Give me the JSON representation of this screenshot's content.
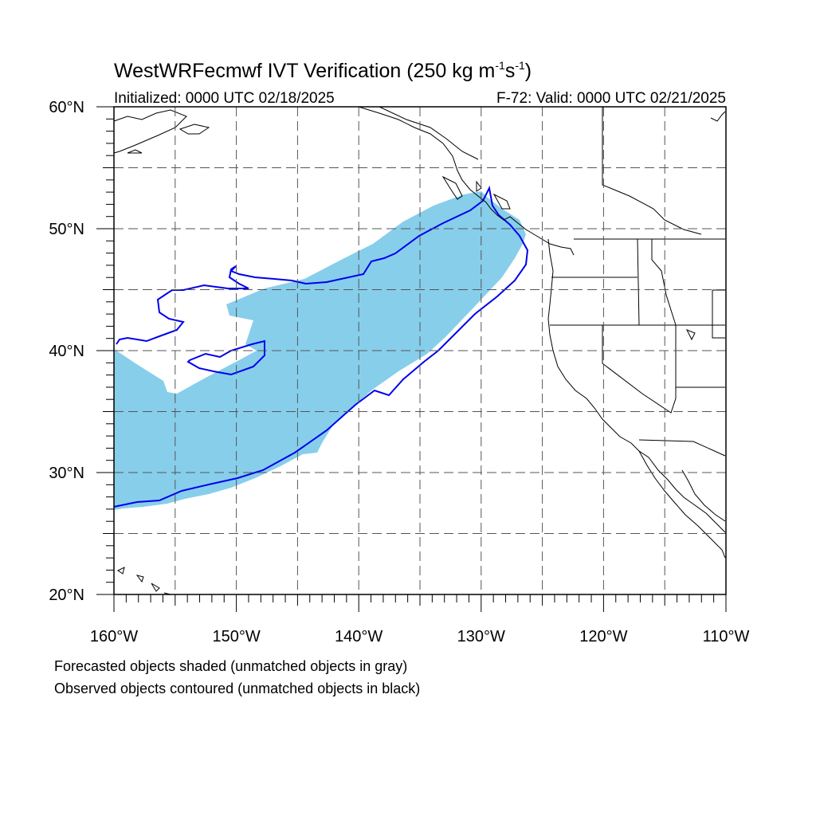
{
  "title": {
    "main": "WestWRFecmwf IVT Verification (250 kg m",
    "sup1": "-1",
    "mid": "s",
    "sup2": "-1",
    "close": ")"
  },
  "subtitle_left": "Initialized: 0000 UTC 02/18/2025",
  "subtitle_right": "F-72: Valid: 0000 UTC 02/21/2025",
  "map": {
    "lon_range": [
      -160,
      -110
    ],
    "lat_range": [
      20,
      60
    ],
    "gridlines": "dashed",
    "grid_spacing_deg": 5,
    "lon_labels": [
      {
        "lon": -160,
        "text": "160°W"
      },
      {
        "lon": -150,
        "text": "150°W"
      },
      {
        "lon": -140,
        "text": "140°W"
      },
      {
        "lon": -130,
        "text": "130°W"
      },
      {
        "lon": -120,
        "text": "120°W"
      },
      {
        "lon": -110,
        "text": "110°W"
      }
    ],
    "lat_labels": [
      {
        "lat": 60,
        "text": "60°N"
      },
      {
        "lat": 50,
        "text": "50°N"
      },
      {
        "lat": 40,
        "text": "40°N"
      },
      {
        "lat": 30,
        "text": "30°N"
      },
      {
        "lat": 20,
        "text": "20°N"
      }
    ],
    "forecast_fill_color": "#87ceeb",
    "observed_contour_color": "#0000ee",
    "coastline_color": "#000000"
  },
  "legend": {
    "line1": "Forecasted objects shaded (unmatched objects in gray)",
    "line2": "Observed objects contoured (unmatched objects in black)"
  }
}
